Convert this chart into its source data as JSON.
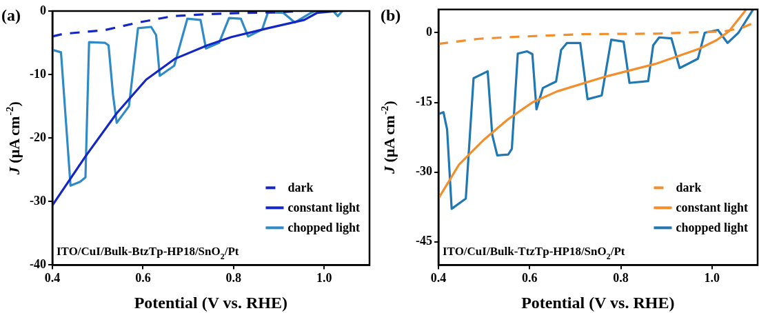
{
  "chart_data": [
    {
      "type": "line",
      "xlabel": "Potential (V vs. RHE)",
      "ylabel": "J (μA cm$^{-2}$)",
      "xlim": [
        0.4,
        1.1
      ],
      "ylim": [
        -40,
        0
      ],
      "xticks": [
        0.4,
        0.6,
        0.8,
        {
          "value": 1.0,
          "label": "1.0"
        }
      ],
      "yticks": [
        -40,
        -30,
        -20,
        -10,
        0
      ],
      "grid": false,
      "legend": "bottom right",
      "marker": "none",
      "line_style": "solid",
      "annotations": [
        "(a)",
        "ITO/CuI/Bulk-BtzTp-HP18/SnO$_{2}$/Pt"
      ],
      "series": [
        {
          "name": "dark",
          "color": "#1426c4",
          "line_style": "dashed",
          "x": [
            0.4,
            0.424,
            0.516,
            0.59,
            0.666,
            0.742,
            0.818,
            0.893,
            0.95
          ],
          "values": [
            -4.0,
            -3.6,
            -3.0,
            -1.8,
            -0.8,
            -0.5,
            -0.3,
            -0.2,
            0
          ]
        },
        {
          "name": "constant light",
          "color": "#1426c4",
          "x": [
            0.4,
            0.473,
            0.542,
            0.607,
            0.671,
            0.742,
            0.795,
            0.876,
            0.956,
            0.984,
            1.03
          ],
          "values": [
            -30.6,
            -22.9,
            -16.1,
            -10.8,
            -7.5,
            -5.4,
            -4.1,
            -2.7,
            -1.4,
            -0.3,
            0
          ]
        },
        {
          "name": "chopped light",
          "color": "#2e8bc8",
          "x": [
            0.4,
            0.419,
            0.44,
            0.461,
            0.473,
            0.481,
            0.516,
            0.524,
            0.534,
            0.542,
            0.569,
            0.589,
            0.618,
            0.629,
            0.637,
            0.669,
            0.698,
            0.727,
            0.739,
            0.768,
            0.79,
            0.816,
            0.832,
            0.863,
            0.876,
            0.91,
            0.935,
            0.97,
            0.98,
            1.02,
            1.03,
            1.04
          ],
          "values": [
            -6.1,
            -6.5,
            -27.5,
            -26.9,
            -26.2,
            -4.9,
            -5.0,
            -5.4,
            -13.3,
            -17.6,
            -15.0,
            -2.7,
            -2.5,
            -3.8,
            -10.2,
            -8.6,
            -1.2,
            -1.4,
            -5.9,
            -5.0,
            -1.1,
            -1.2,
            -4.0,
            -2.9,
            -0.2,
            -0.3,
            -1.8,
            -0.3,
            0,
            0,
            -0.8,
            0
          ]
        }
      ]
    },
    {
      "type": "line",
      "xlabel": "Potential (V vs. RHE)",
      "ylabel": "J (μA cm$^{-2}$)",
      "xlim": [
        0.4,
        1.1
      ],
      "ylim": [
        -50,
        5
      ],
      "xticks": [
        0.4,
        0.6,
        0.8,
        {
          "value": 1.0,
          "label": "1.0"
        }
      ],
      "yticks": [
        -45,
        -30,
        -15,
        0
      ],
      "grid": false,
      "legend": "bottom right",
      "marker": "none",
      "line_style": "solid",
      "annotations": [
        "(b)",
        "ITO/CuI/Bulk-TtzTp-HP18/SnO$_{2}$/Pt"
      ],
      "series": [
        {
          "name": "dark",
          "color": "#f28e2b",
          "line_style": "dashed",
          "x": [
            0.4,
            0.489,
            0.565,
            0.715,
            0.876,
            1.026,
            1.065,
            1.1
          ],
          "values": [
            -2.4,
            -1.3,
            -0.9,
            -0.3,
            -0.2,
            0.3,
            1.0,
            2.5
          ]
        },
        {
          "name": "constant light",
          "color": "#f28e2b",
          "x": [
            0.4,
            0.445,
            0.5,
            0.553,
            0.606,
            0.661,
            0.768,
            0.876,
            0.973,
            1.01,
            1.037,
            1.075
          ],
          "values": [
            -35.7,
            -28.4,
            -23.0,
            -18.6,
            -15.0,
            -12.6,
            -9.4,
            -6.7,
            -3.4,
            -1.6,
            0.3,
            5
          ]
        },
        {
          "name": "chopped light",
          "color": "#1f77b4",
          "x": [
            0.4,
            0.411,
            0.419,
            0.429,
            0.46,
            0.477,
            0.508,
            0.518,
            0.529,
            0.553,
            0.561,
            0.574,
            0.594,
            0.606,
            0.615,
            0.629,
            0.658,
            0.669,
            0.682,
            0.711,
            0.727,
            0.758,
            0.779,
            0.806,
            0.819,
            0.86,
            0.871,
            0.884,
            0.911,
            0.929,
            0.969,
            0.984,
            1.013,
            1.034,
            1.058,
            1.09
          ],
          "values": [
            -17.5,
            -17.1,
            -20.8,
            -37.9,
            -35.7,
            -9.8,
            -8.3,
            -22.0,
            -26.4,
            -26.2,
            -25.0,
            -4.5,
            -4.0,
            -4.6,
            -16.5,
            -11.9,
            -10.5,
            -3.7,
            -2.2,
            -2.2,
            -14.3,
            -13.5,
            -1.5,
            -1.9,
            -10.8,
            -10.4,
            -2.7,
            -1.0,
            -1.2,
            -7.6,
            -5.6,
            0,
            0.6,
            -2.2,
            0,
            5
          ]
        }
      ]
    }
  ]
}
